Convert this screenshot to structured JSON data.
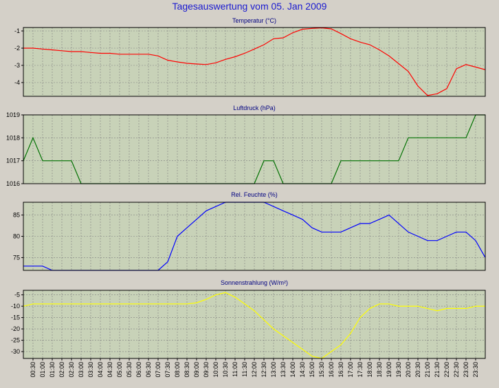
{
  "title": "Tagesauswertung vom 05. Jan 2009",
  "time_labels": [
    "00:30",
    "01:00",
    "01:30",
    "02:00",
    "02:30",
    "03:00",
    "03:30",
    "04:00",
    "04:30",
    "05:00",
    "05:30",
    "06:00",
    "06:30",
    "07:00",
    "07:30",
    "08:00",
    "08:30",
    "09:00",
    "09:30",
    "10:00",
    "10:30",
    "11:00",
    "11:30",
    "12:00",
    "12:30",
    "13:00",
    "13:30",
    "14:00",
    "14:30",
    "15:00",
    "15:30",
    "16:00",
    "16:30",
    "17:00",
    "17:30",
    "18:00",
    "18:30",
    "19:00",
    "19:30",
    "20:00",
    "20:30",
    "21:00",
    "21:30",
    "22:00",
    "22:30",
    "23:00",
    "23:30"
  ],
  "colors": {
    "background": "#d4d0c8",
    "plot_background": "#c8d2b8",
    "grid": "#7f7f7f",
    "title": "#1a1ad0",
    "panel_title": "#000080"
  },
  "chart_data": [
    {
      "type": "line",
      "title": "Temperatur (°C)",
      "color": "#ff0000",
      "ylim": [
        -4.8,
        -0.8
      ],
      "yticks": [
        -1,
        -2,
        -3,
        -4
      ],
      "grid": true,
      "x": [
        "00:00",
        "00:30",
        "01:00",
        "01:30",
        "02:00",
        "02:30",
        "03:00",
        "03:30",
        "04:00",
        "04:30",
        "05:00",
        "05:30",
        "06:00",
        "06:30",
        "07:00",
        "07:30",
        "08:00",
        "08:30",
        "09:00",
        "09:30",
        "10:00",
        "10:30",
        "11:00",
        "11:30",
        "12:00",
        "12:30",
        "13:00",
        "13:30",
        "14:00",
        "14:30",
        "15:00",
        "15:30",
        "16:00",
        "16:30",
        "17:00",
        "17:30",
        "18:00",
        "18:30",
        "19:00",
        "19:30",
        "20:00",
        "20:30",
        "21:00",
        "21:30",
        "22:00",
        "22:30",
        "23:00",
        "23:30",
        "24:00"
      ],
      "values": [
        -2.0,
        -2.0,
        -2.05,
        -2.1,
        -2.15,
        -2.2,
        -2.2,
        -2.25,
        -2.3,
        -2.3,
        -2.35,
        -2.35,
        -2.35,
        -2.35,
        -2.45,
        -2.7,
        -2.8,
        -2.88,
        -2.92,
        -2.95,
        -2.85,
        -2.65,
        -2.5,
        -2.3,
        -2.05,
        -1.8,
        -1.45,
        -1.4,
        -1.1,
        -0.9,
        -0.85,
        -0.82,
        -0.88,
        -1.15,
        -1.45,
        -1.65,
        -1.8,
        -2.1,
        -2.45,
        -2.9,
        -3.35,
        -4.2,
        -4.75,
        -4.65,
        -4.35,
        -3.2,
        -2.95,
        -3.1,
        -3.25
      ]
    },
    {
      "type": "line",
      "title": "Luftdruck (hPa)",
      "color": "#007000",
      "ylim": [
        1016,
        1019
      ],
      "yticks": [
        1019,
        1018,
        1017,
        1016
      ],
      "grid": true,
      "x": [
        "00:00",
        "00:30",
        "01:00",
        "01:30",
        "02:00",
        "02:30",
        "03:00",
        "03:30",
        "04:00",
        "04:30",
        "05:00",
        "05:30",
        "06:00",
        "06:30",
        "07:00",
        "07:30",
        "08:00",
        "08:30",
        "09:00",
        "09:30",
        "10:00",
        "10:30",
        "11:00",
        "11:30",
        "12:00",
        "12:30",
        "13:00",
        "13:30",
        "14:00",
        "14:30",
        "15:00",
        "15:30",
        "16:00",
        "16:30",
        "17:00",
        "17:30",
        "18:00",
        "18:30",
        "19:00",
        "19:30",
        "20:00",
        "20:30",
        "21:00",
        "21:30",
        "22:00",
        "22:30",
        "23:00",
        "23:30",
        "24:00"
      ],
      "values": [
        1017,
        1018,
        1017,
        1017,
        1017,
        1017,
        1016,
        1016,
        1016,
        1016,
        1016,
        1016,
        1016,
        1016,
        1016,
        1016,
        1016,
        1016,
        1016,
        1016,
        1016,
        1016,
        1016,
        1016,
        1016,
        1017,
        1017,
        1016,
        1016,
        1016,
        1016,
        1016,
        1016,
        1017,
        1017,
        1017,
        1017,
        1017,
        1017,
        1017,
        1018,
        1018,
        1018,
        1018,
        1018,
        1018,
        1018,
        1019,
        1019
      ]
    },
    {
      "type": "line",
      "title": "Rel. Feuchte (%)",
      "color": "#0000ff",
      "ylim": [
        72,
        88
      ],
      "yticks": [
        85,
        80,
        75
      ],
      "grid": true,
      "x": [
        "00:00",
        "00:30",
        "01:00",
        "01:30",
        "02:00",
        "02:30",
        "03:00",
        "03:30",
        "04:00",
        "04:30",
        "05:00",
        "05:30",
        "06:00",
        "06:30",
        "07:00",
        "07:30",
        "08:00",
        "08:30",
        "09:00",
        "09:30",
        "10:00",
        "10:30",
        "11:00",
        "11:30",
        "12:00",
        "12:30",
        "13:00",
        "13:30",
        "14:00",
        "14:30",
        "15:00",
        "15:30",
        "16:00",
        "16:30",
        "17:00",
        "17:30",
        "18:00",
        "18:30",
        "19:00",
        "19:30",
        "20:00",
        "20:30",
        "21:00",
        "21:30",
        "22:00",
        "22:30",
        "23:00",
        "23:30",
        "24:00"
      ],
      "values": [
        73,
        73,
        73,
        72,
        72,
        72,
        72,
        72,
        72,
        72,
        72,
        72,
        72,
        72,
        72,
        74,
        80,
        82,
        84,
        86,
        87,
        88,
        88,
        88,
        88,
        88,
        87,
        86,
        85,
        84,
        82,
        81,
        81,
        81,
        82,
        83,
        83,
        84,
        85,
        83,
        81,
        80,
        79,
        79,
        80,
        81,
        81,
        79,
        75
      ]
    },
    {
      "type": "line",
      "title": "Sonnenstrahlung (W/m²)",
      "color": "#ffff00",
      "ylim": [
        -33,
        -3
      ],
      "yticks": [
        -5,
        -10,
        -15,
        -20,
        -25,
        -30
      ],
      "grid": true,
      "x": [
        "00:00",
        "00:30",
        "01:00",
        "01:30",
        "02:00",
        "02:30",
        "03:00",
        "03:30",
        "04:00",
        "04:30",
        "05:00",
        "05:30",
        "06:00",
        "06:30",
        "07:00",
        "07:30",
        "08:00",
        "08:30",
        "09:00",
        "09:30",
        "10:00",
        "10:30",
        "11:00",
        "11:30",
        "12:00",
        "12:30",
        "13:00",
        "13:30",
        "14:00",
        "14:30",
        "15:00",
        "15:30",
        "16:00",
        "16:30",
        "17:00",
        "17:30",
        "18:00",
        "18:30",
        "19:00",
        "19:30",
        "20:00",
        "20:30",
        "21:00",
        "21:30",
        "22:00",
        "22:30",
        "23:00",
        "23:30",
        "24:00"
      ],
      "values": [
        -10,
        -9,
        -9,
        -9,
        -9,
        -9,
        -9,
        -9,
        -9,
        -9,
        -9,
        -9,
        -9,
        -9,
        -9,
        -9,
        -9,
        -9,
        -8.5,
        -7,
        -5,
        -4,
        -6,
        -9,
        -12,
        -16,
        -20,
        -23,
        -26,
        -29,
        -32,
        -33,
        -30,
        -27,
        -22,
        -15,
        -11,
        -9,
        -9,
        -10,
        -10,
        -10,
        -11,
        -12,
        -11,
        -11,
        -11,
        -10,
        -10
      ]
    }
  ]
}
